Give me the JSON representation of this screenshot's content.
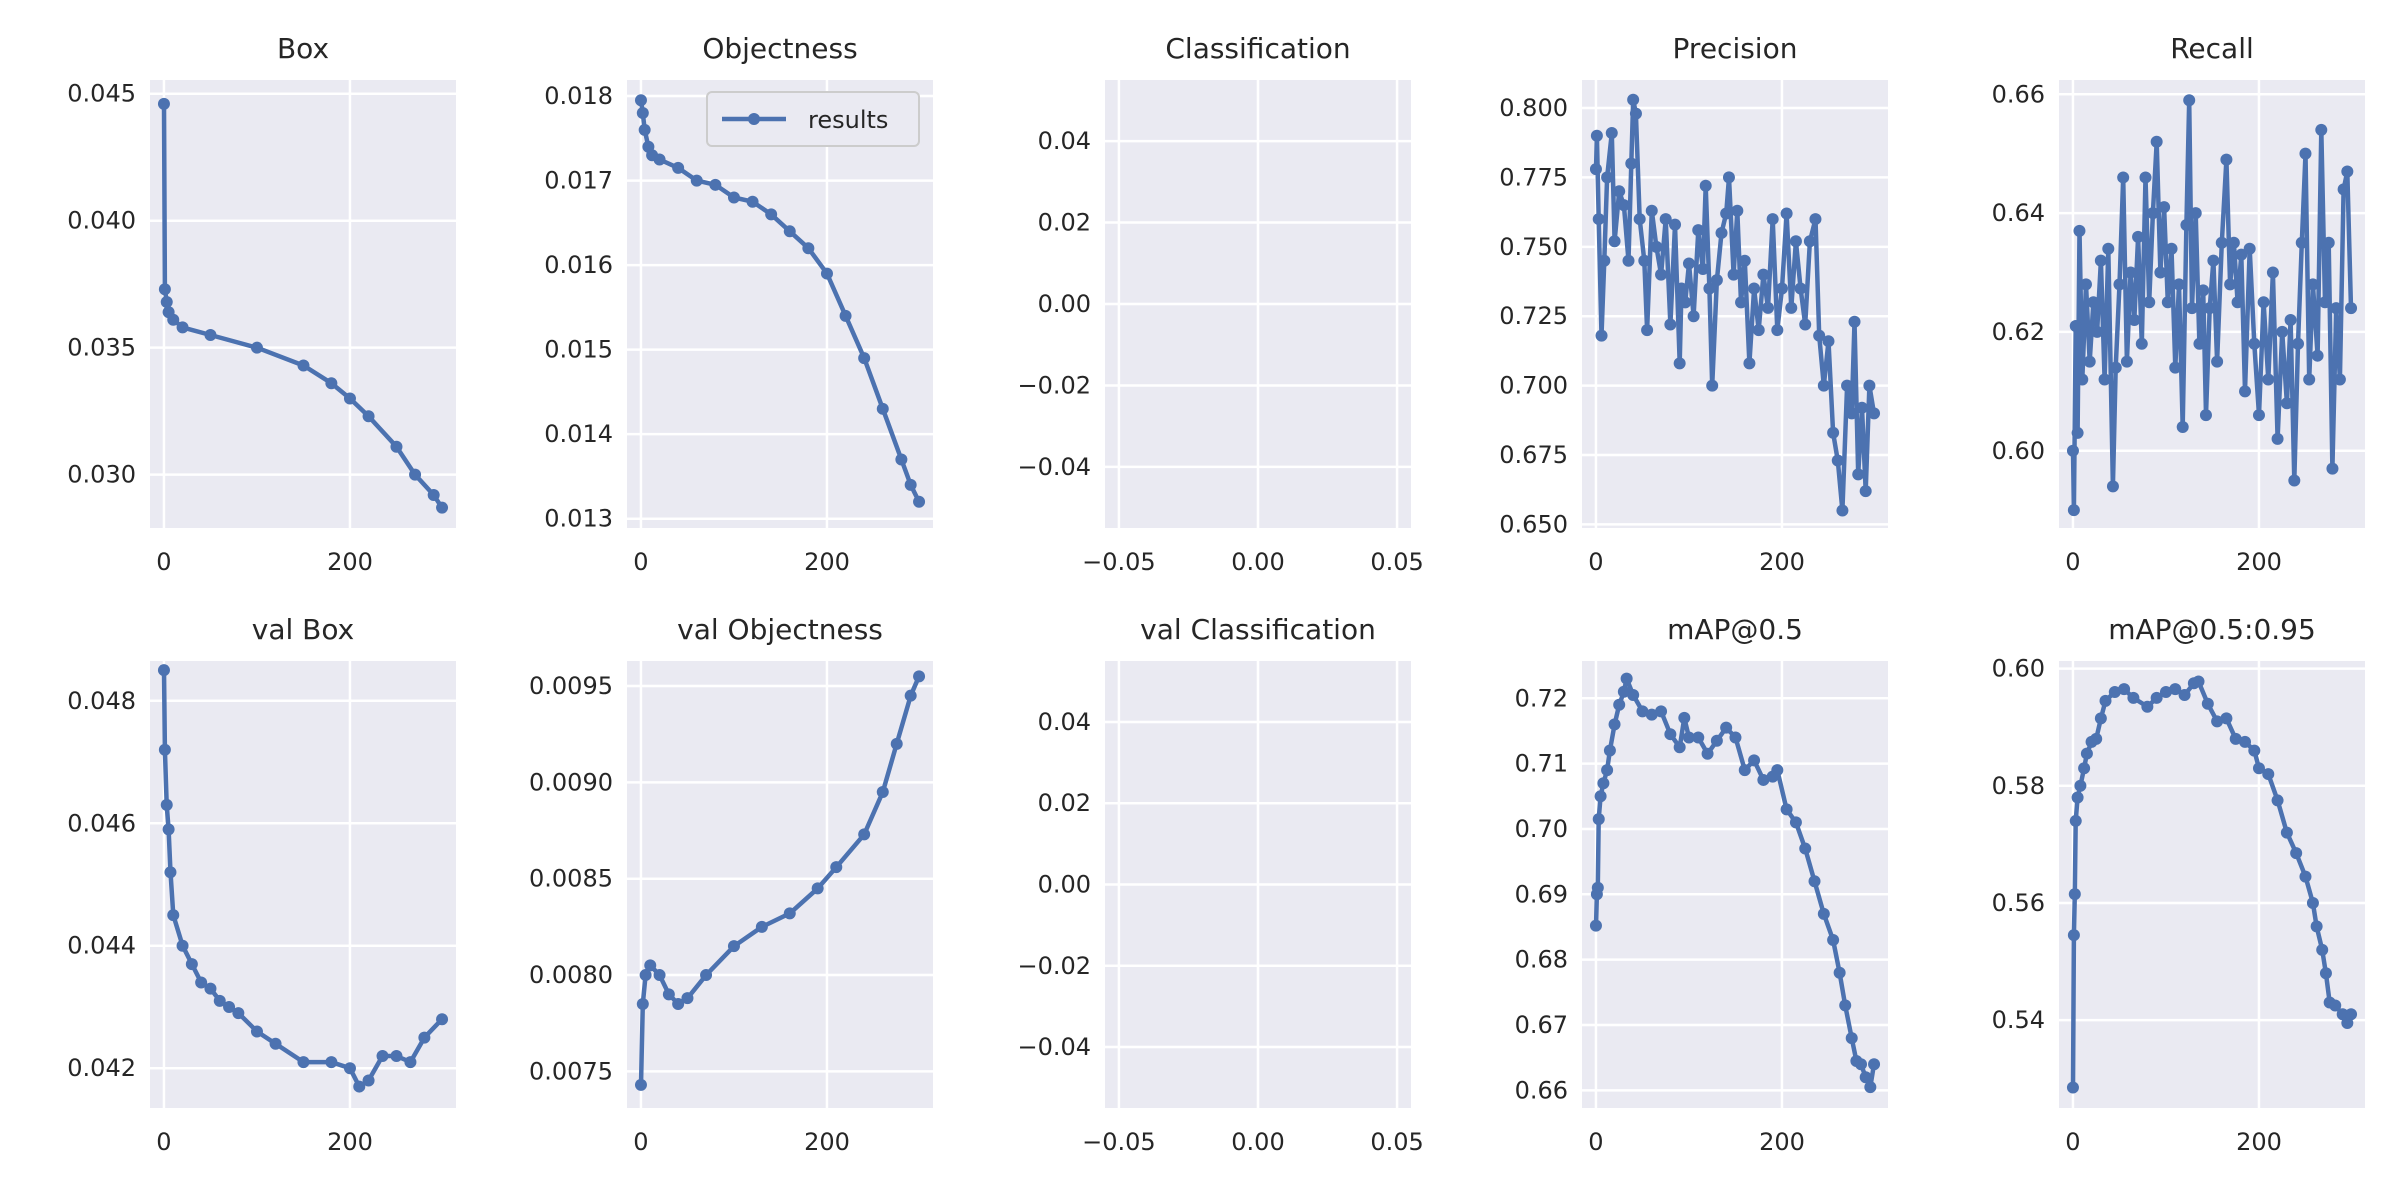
{
  "style": {
    "background": "#eaeaf2",
    "grid": "#ffffff",
    "line": "#4c72b0",
    "text": "#262626"
  },
  "legend": {
    "label": "results",
    "placement": "upper right of Objectness panel"
  },
  "chart_data": [
    {
      "type": "line",
      "title": "Box",
      "grid": true,
      "x": [
        0,
        1,
        3,
        5,
        10,
        20,
        50,
        100,
        150,
        180,
        200,
        220,
        250,
        270,
        290,
        299
      ],
      "y": [
        0.0446,
        0.0373,
        0.0368,
        0.0364,
        0.0361,
        0.0358,
        0.0355,
        0.035,
        0.0343,
        0.0336,
        0.033,
        0.0323,
        0.0311,
        0.03,
        0.0292,
        0.0287
      ],
      "xlim": [
        -15,
        314
      ],
      "ylim": [
        0.0279,
        0.04554
      ],
      "xticks": [
        0,
        200
      ],
      "xtick_labels": [
        "0",
        "200"
      ],
      "yticks": [
        0.03,
        0.035,
        0.04,
        0.045
      ],
      "ytick_labels": [
        "0.030",
        "0.035",
        "0.040",
        "0.045"
      ]
    },
    {
      "type": "line",
      "title": "Objectness",
      "grid": true,
      "x": [
        0,
        2,
        4,
        8,
        12,
        20,
        40,
        60,
        80,
        100,
        120,
        140,
        160,
        180,
        200,
        220,
        240,
        260,
        280,
        290,
        299
      ],
      "y": [
        0.01795,
        0.0178,
        0.0176,
        0.0174,
        0.0173,
        0.01725,
        0.01715,
        0.017,
        0.01695,
        0.0168,
        0.01675,
        0.0166,
        0.0164,
        0.0162,
        0.0159,
        0.0154,
        0.0149,
        0.0143,
        0.0137,
        0.0134,
        0.0132
      ],
      "xlim": [
        -15,
        314
      ],
      "ylim": [
        0.01289,
        0.01819
      ],
      "xticks": [
        0,
        200
      ],
      "xtick_labels": [
        "0",
        "200"
      ],
      "yticks": [
        0.013,
        0.014,
        0.015,
        0.016,
        0.017,
        0.018
      ],
      "ytick_labels": [
        "0.013",
        "0.014",
        "0.015",
        "0.016",
        "0.017",
        "0.018"
      ]
    },
    {
      "type": "line",
      "title": "Classification",
      "grid": true,
      "x": [],
      "y": [],
      "xlim": [
        -0.055,
        0.055
      ],
      "ylim": [
        -0.055,
        0.055
      ],
      "xticks": [
        -0.05,
        0,
        0.05
      ],
      "xtick_labels": [
        "−0.05",
        "0.00",
        "0.05"
      ],
      "yticks": [
        -0.04,
        -0.02,
        0,
        0.02,
        0.04
      ],
      "ytick_labels": [
        "−0.04",
        "−0.02",
        "0.00",
        "0.02",
        "0.04"
      ]
    },
    {
      "type": "line",
      "title": "Precision",
      "grid": true,
      "x": [
        0,
        1,
        3,
        6,
        9,
        12,
        17,
        20,
        25,
        30,
        35,
        38,
        40,
        43,
        47,
        52,
        55,
        60,
        65,
        70,
        75,
        80,
        85,
        90,
        92,
        96,
        100,
        105,
        110,
        115,
        118,
        122,
        125,
        130,
        135,
        140,
        143,
        148,
        152,
        156,
        160,
        165,
        170,
        175,
        180,
        185,
        190,
        195,
        200,
        205,
        210,
        215,
        220,
        225,
        230,
        236,
        240,
        245,
        250,
        255,
        260,
        265,
        270,
        275,
        278,
        282,
        286,
        290,
        294,
        299
      ],
      "y": [
        0.778,
        0.79,
        0.76,
        0.718,
        0.745,
        0.775,
        0.791,
        0.752,
        0.77,
        0.765,
        0.745,
        0.78,
        0.803,
        0.798,
        0.76,
        0.745,
        0.72,
        0.763,
        0.75,
        0.74,
        0.76,
        0.722,
        0.758,
        0.708,
        0.735,
        0.73,
        0.744,
        0.725,
        0.756,
        0.742,
        0.772,
        0.735,
        0.7,
        0.738,
        0.755,
        0.762,
        0.775,
        0.74,
        0.763,
        0.73,
        0.745,
        0.708,
        0.735,
        0.72,
        0.74,
        0.728,
        0.76,
        0.72,
        0.735,
        0.762,
        0.728,
        0.752,
        0.735,
        0.722,
        0.752,
        0.76,
        0.718,
        0.7,
        0.716,
        0.683,
        0.673,
        0.655,
        0.7,
        0.69,
        0.723,
        0.668,
        0.692,
        0.662,
        0.7,
        0.69
      ],
      "xlim": [
        -15,
        314
      ],
      "ylim": [
        0.6487,
        0.8101
      ],
      "xticks": [
        0,
        200
      ],
      "xtick_labels": [
        "0",
        "200"
      ],
      "yticks": [
        0.65,
        0.675,
        0.7,
        0.725,
        0.75,
        0.775,
        0.8
      ],
      "ytick_labels": [
        "0.650",
        "0.675",
        "0.700",
        "0.725",
        "0.750",
        "0.775",
        "0.800"
      ]
    },
    {
      "type": "line",
      "title": "Recall",
      "grid": true,
      "x": [
        0,
        1,
        3,
        5,
        7,
        10,
        14,
        18,
        22,
        26,
        30,
        34,
        38,
        43,
        46,
        50,
        54,
        58,
        62,
        66,
        70,
        74,
        78,
        82,
        86,
        90,
        94,
        98,
        102,
        106,
        110,
        114,
        118,
        122,
        125,
        128,
        132,
        136,
        140,
        143,
        147,
        151,
        155,
        160,
        165,
        169,
        173,
        177,
        181,
        185,
        190,
        195,
        200,
        205,
        210,
        215,
        220,
        225,
        230,
        234,
        238,
        242,
        246,
        250,
        254,
        258,
        263,
        267,
        271,
        275,
        279,
        283,
        287,
        291,
        295,
        299
      ],
      "y": [
        0.6,
        0.59,
        0.621,
        0.603,
        0.637,
        0.612,
        0.628,
        0.615,
        0.625,
        0.62,
        0.632,
        0.612,
        0.634,
        0.594,
        0.614,
        0.628,
        0.646,
        0.615,
        0.63,
        0.622,
        0.636,
        0.618,
        0.646,
        0.625,
        0.64,
        0.652,
        0.63,
        0.641,
        0.625,
        0.634,
        0.614,
        0.628,
        0.604,
        0.638,
        0.659,
        0.624,
        0.64,
        0.618,
        0.627,
        0.606,
        0.624,
        0.632,
        0.615,
        0.635,
        0.649,
        0.628,
        0.635,
        0.625,
        0.633,
        0.61,
        0.634,
        0.618,
        0.606,
        0.625,
        0.612,
        0.63,
        0.602,
        0.62,
        0.608,
        0.622,
        0.595,
        0.618,
        0.635,
        0.65,
        0.612,
        0.628,
        0.616,
        0.654,
        0.625,
        0.635,
        0.597,
        0.624,
        0.612,
        0.644,
        0.647,
        0.624
      ],
      "xlim": [
        -15,
        314
      ],
      "ylim": [
        0.587,
        0.6624
      ],
      "xticks": [
        0,
        200
      ],
      "xtick_labels": [
        "0",
        "200"
      ],
      "yticks": [
        0.6,
        0.62,
        0.64,
        0.66
      ],
      "ytick_labels": [
        "0.60",
        "0.62",
        "0.64",
        "0.66"
      ]
    },
    {
      "type": "line",
      "title": "val Box",
      "grid": true,
      "x": [
        0,
        1,
        3,
        5,
        7,
        10,
        20,
        30,
        40,
        50,
        60,
        70,
        80,
        100,
        120,
        150,
        180,
        200,
        210,
        220,
        235,
        250,
        265,
        280,
        299
      ],
      "y": [
        0.0485,
        0.0472,
        0.0463,
        0.0459,
        0.0452,
        0.0445,
        0.044,
        0.0437,
        0.0434,
        0.0433,
        0.0431,
        0.043,
        0.0429,
        0.0426,
        0.0424,
        0.0421,
        0.0421,
        0.042,
        0.0417,
        0.0418,
        0.0422,
        0.0422,
        0.0421,
        0.0425,
        0.0428
      ],
      "xlim": [
        -15,
        314
      ],
      "ylim": [
        0.04135,
        0.04865
      ],
      "xticks": [
        0,
        200
      ],
      "xtick_labels": [
        "0",
        "200"
      ],
      "yticks": [
        0.042,
        0.044,
        0.046,
        0.048
      ],
      "ytick_labels": [
        "0.042",
        "0.044",
        "0.046",
        "0.048"
      ]
    },
    {
      "type": "line",
      "title": "val Objectness",
      "grid": true,
      "x": [
        0,
        2,
        5,
        10,
        20,
        30,
        40,
        50,
        70,
        100,
        130,
        160,
        190,
        210,
        240,
        260,
        275,
        290,
        299
      ],
      "y": [
        0.00743,
        0.00785,
        0.008,
        0.00805,
        0.008,
        0.0079,
        0.00785,
        0.00788,
        0.008,
        0.00815,
        0.00825,
        0.00832,
        0.00845,
        0.00856,
        0.00873,
        0.00895,
        0.0092,
        0.00945,
        0.00955
      ],
      "xlim": [
        -15,
        314
      ],
      "ylim": [
        0.00731,
        0.00963
      ],
      "xticks": [
        0,
        200
      ],
      "xtick_labels": [
        "0",
        "200"
      ],
      "yticks": [
        0.0075,
        0.008,
        0.0085,
        0.009,
        0.0095
      ],
      "ytick_labels": [
        "0.0075",
        "0.0080",
        "0.0085",
        "0.0090",
        "0.0095"
      ]
    },
    {
      "type": "line",
      "title": "val Classification",
      "grid": true,
      "x": [],
      "y": [],
      "xlim": [
        -0.055,
        0.055
      ],
      "ylim": [
        -0.055,
        0.055
      ],
      "xticks": [
        -0.05,
        0,
        0.05
      ],
      "xtick_labels": [
        "−0.05",
        "0.00",
        "0.05"
      ],
      "yticks": [
        -0.04,
        -0.02,
        0,
        0.02,
        0.04
      ],
      "ytick_labels": [
        "−0.04",
        "−0.02",
        "0.00",
        "0.02",
        "0.04"
      ]
    },
    {
      "type": "line",
      "title": "mAP@0.5",
      "grid": true,
      "x": [
        0,
        1,
        2,
        3,
        5,
        8,
        12,
        15,
        20,
        25,
        30,
        33,
        40,
        50,
        60,
        70,
        80,
        90,
        95,
        100,
        110,
        120,
        130,
        140,
        150,
        160,
        170,
        180,
        190,
        195,
        205,
        215,
        225,
        235,
        245,
        255,
        262,
        268,
        275,
        280,
        285,
        290,
        295,
        299
      ],
      "y": [
        0.6852,
        0.69,
        0.691,
        0.7015,
        0.705,
        0.707,
        0.709,
        0.712,
        0.716,
        0.719,
        0.721,
        0.723,
        0.7205,
        0.718,
        0.7175,
        0.718,
        0.7145,
        0.7125,
        0.717,
        0.714,
        0.714,
        0.7115,
        0.7135,
        0.7155,
        0.714,
        0.709,
        0.7105,
        0.7075,
        0.708,
        0.709,
        0.703,
        0.701,
        0.697,
        0.692,
        0.687,
        0.683,
        0.678,
        0.673,
        0.668,
        0.6645,
        0.664,
        0.662,
        0.6605,
        0.664
      ],
      "xlim": [
        -15,
        314
      ],
      "ylim": [
        0.6573,
        0.7257
      ],
      "xticks": [
        0,
        200
      ],
      "xtick_labels": [
        "0",
        "200"
      ],
      "yticks": [
        0.66,
        0.67,
        0.68,
        0.69,
        0.7,
        0.71,
        0.72
      ],
      "ytick_labels": [
        "0.66",
        "0.67",
        "0.68",
        "0.69",
        "0.70",
        "0.71",
        "0.72"
      ]
    },
    {
      "type": "line",
      "title": "mAP@0.5:0.95",
      "grid": true,
      "x": [
        0,
        1,
        2,
        3,
        5,
        8,
        12,
        15,
        20,
        25,
        30,
        35,
        45,
        55,
        65,
        80,
        90,
        100,
        110,
        120,
        130,
        135,
        145,
        155,
        165,
        175,
        185,
        195,
        200,
        210,
        220,
        230,
        240,
        250,
        258,
        262,
        268,
        272,
        276,
        282,
        290,
        295,
        299
      ],
      "y": [
        0.5285,
        0.5545,
        0.5615,
        0.574,
        0.578,
        0.58,
        0.583,
        0.5855,
        0.5875,
        0.588,
        0.5915,
        0.5945,
        0.596,
        0.5965,
        0.595,
        0.5935,
        0.595,
        0.596,
        0.5965,
        0.5955,
        0.5975,
        0.5978,
        0.594,
        0.591,
        0.5915,
        0.588,
        0.5875,
        0.586,
        0.583,
        0.582,
        0.5775,
        0.572,
        0.5685,
        0.5645,
        0.56,
        0.556,
        0.552,
        0.548,
        0.543,
        0.5425,
        0.541,
        0.5395,
        0.541
      ],
      "xlim": [
        -15,
        314
      ],
      "ylim": [
        0.525,
        0.6013
      ],
      "xticks": [
        0,
        200
      ],
      "xtick_labels": [
        "0",
        "200"
      ],
      "yticks": [
        0.54,
        0.56,
        0.58,
        0.6
      ],
      "ytick_labels": [
        "0.54",
        "0.56",
        "0.58",
        "0.60"
      ]
    }
  ]
}
